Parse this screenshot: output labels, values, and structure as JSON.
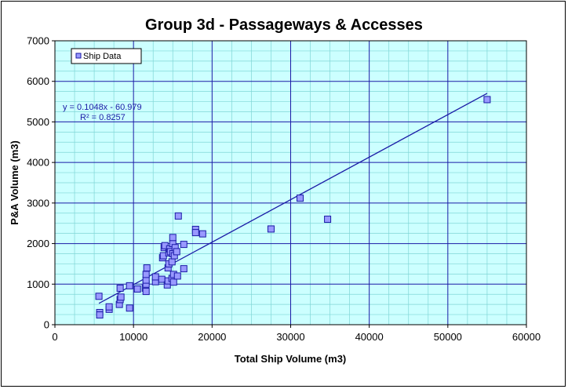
{
  "chart_data": {
    "type": "scatter",
    "title": "Group 3d - Passageways & Accesses",
    "xlabel": "Total Ship Volume (m3)",
    "ylabel": "P&A Volume (m3)",
    "xlim": [
      0,
      60000
    ],
    "ylim": [
      0,
      7000
    ],
    "x_ticks": [
      "0",
      "10000",
      "20000",
      "30000",
      "40000",
      "50000",
      "60000"
    ],
    "y_ticks": [
      "0",
      "1000",
      "2000",
      "3000",
      "4000",
      "5000",
      "6000",
      "7000"
    ],
    "grid": true,
    "legend_position": "top-left",
    "colors": {
      "plot_background": "#ccffff",
      "minor_grid": "#7fd6d6",
      "major_grid": "#1a1aa6",
      "marker_fill": "#9999ff",
      "marker_edge": "#1a1aa6",
      "trendline": "#1a1aa6"
    },
    "series": [
      {
        "name": "Ship Data",
        "marker": "square",
        "points": [
          [
            5600,
            700
          ],
          [
            5700,
            300
          ],
          [
            5700,
            240
          ],
          [
            6900,
            380
          ],
          [
            6900,
            440
          ],
          [
            8300,
            900
          ],
          [
            8200,
            500
          ],
          [
            8300,
            620
          ],
          [
            8400,
            680
          ],
          [
            9500,
            960
          ],
          [
            9500,
            410
          ],
          [
            10500,
            880
          ],
          [
            11500,
            900
          ],
          [
            11600,
            820
          ],
          [
            11600,
            1000
          ],
          [
            11600,
            1100
          ],
          [
            11600,
            1240
          ],
          [
            11700,
            1400
          ],
          [
            12800,
            1060
          ],
          [
            12800,
            1180
          ],
          [
            13600,
            1120
          ],
          [
            13700,
            1650
          ],
          [
            13800,
            1700
          ],
          [
            13900,
            1900
          ],
          [
            14000,
            1950
          ],
          [
            14300,
            980
          ],
          [
            14400,
            1080
          ],
          [
            14400,
            1400
          ],
          [
            14500,
            1500
          ],
          [
            14500,
            1770
          ],
          [
            14600,
            1870
          ],
          [
            14700,
            1800
          ],
          [
            14900,
            1140
          ],
          [
            14900,
            1550
          ],
          [
            15000,
            1750
          ],
          [
            15000,
            2000
          ],
          [
            15000,
            2150
          ],
          [
            15100,
            1240
          ],
          [
            15100,
            1050
          ],
          [
            15200,
            1700
          ],
          [
            15300,
            1900
          ],
          [
            15500,
            1800
          ],
          [
            15600,
            1200
          ],
          [
            15700,
            2680
          ],
          [
            16400,
            1380
          ],
          [
            16400,
            1980
          ],
          [
            17900,
            2350
          ],
          [
            17900,
            2270
          ],
          [
            18800,
            2240
          ],
          [
            27500,
            2360
          ],
          [
            31200,
            3120
          ],
          [
            34700,
            2600
          ],
          [
            55000,
            5550
          ]
        ]
      }
    ],
    "trendline": {
      "type": "linear",
      "slope": 0.1048,
      "intercept": -60.979,
      "x_range": [
        5600,
        55000
      ],
      "equation": "y = 0.1048x - 60.979",
      "r_squared": "R² = 0.8257"
    }
  }
}
